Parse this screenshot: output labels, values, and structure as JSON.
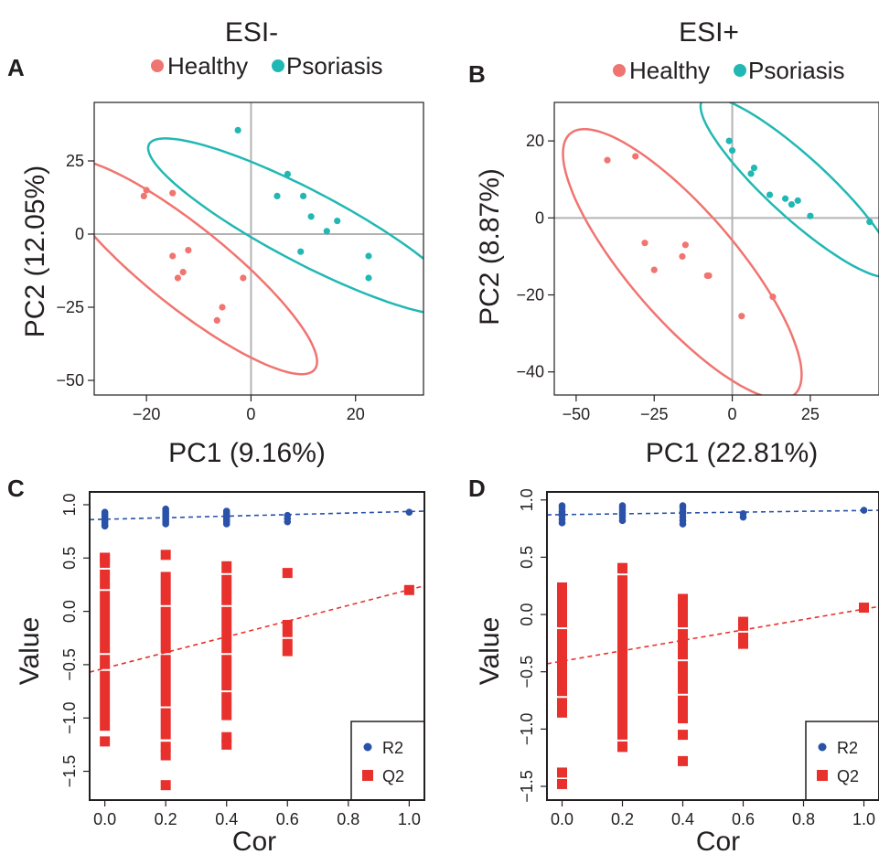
{
  "colors": {
    "healthy": "#f07470",
    "psoriasis": "#21b8b4",
    "r2": "#2a52a8",
    "q2": "#e8302c",
    "axis": "#231f20",
    "grid_zero": "#b3b3b3"
  },
  "legend_top": {
    "healthy": "Healthy",
    "psoriasis": "Psoriasis"
  },
  "legend_box": {
    "r2": "R2",
    "q2": "Q2"
  },
  "chart_data": [
    {
      "id": "A",
      "panel_label": "A",
      "type": "scatter",
      "title": "ESI-",
      "xlabel": "PC1 (9.16%)",
      "ylabel": "PC2 (12.05%)",
      "xlim": [
        -30,
        33
      ],
      "ylim": [
        -55,
        45
      ],
      "xticks": [
        -20,
        0,
        20
      ],
      "yticks": [
        -50,
        -25,
        0,
        25
      ],
      "xtick_labels": [
        "−20",
        "0",
        "20"
      ],
      "ytick_labels": [
        "−50",
        "−25",
        "0",
        "25"
      ],
      "series": [
        {
          "name": "Healthy",
          "points": [
            [
              -20,
              15
            ],
            [
              -20.5,
              13
            ],
            [
              -15,
              14
            ],
            [
              -15,
              -7.5
            ],
            [
              -14,
              -15
            ],
            [
              -13,
              -13
            ],
            [
              -12,
              -5.5
            ],
            [
              -5.5,
              -25
            ],
            [
              -6.5,
              -29.5
            ],
            [
              -1.5,
              -15
            ]
          ],
          "ellipse": {
            "center": [
              -12.5,
              -11
            ],
            "corner": [
              -5,
              -55
            ],
            "semi_major": 43.5,
            "semi_minor": 10,
            "angle_deg": -57
          }
        },
        {
          "name": "Psoriasis",
          "points": [
            [
              -2.5,
              35.5
            ],
            [
              7,
              20.5
            ],
            [
              5,
              13
            ],
            [
              10,
              13
            ],
            [
              11.5,
              6
            ],
            [
              14.5,
              1
            ],
            [
              16.5,
              4.5
            ],
            [
              9.5,
              -6
            ],
            [
              22.5,
              -15
            ],
            [
              22.5,
              -7.5
            ]
          ],
          "ellipse": {
            "center": [
              10.5,
              2.5
            ],
            "semi_major": 41.5,
            "semi_minor": 10,
            "angle_deg": -45
          }
        }
      ]
    },
    {
      "id": "B",
      "panel_label": "B",
      "type": "scatter",
      "title": "ESI+",
      "xlabel": "PC1 (22.81%)",
      "ylabel": "PC2 (8.87%)",
      "xlim": [
        -57,
        47
      ],
      "ylim": [
        -46,
        30
      ],
      "xticks": [
        -50,
        -25,
        0,
        25
      ],
      "yticks": [
        -40,
        -20,
        0,
        20
      ],
      "xtick_labels": [
        "−50",
        "−25",
        "0",
        "25"
      ],
      "ytick_labels": [
        "−40",
        "−20",
        "0",
        "20"
      ],
      "series": [
        {
          "name": "Healthy",
          "points": [
            [
              -40,
              15
            ],
            [
              -31,
              16
            ],
            [
              -28,
              -6.5
            ],
            [
              -25,
              -13.5
            ],
            [
              -15,
              -7
            ],
            [
              -16,
              -10
            ],
            [
              -8,
              -15
            ],
            [
              -7.5,
              -15
            ],
            [
              13,
              -20.5
            ],
            [
              3,
              -25.5
            ]
          ],
          "ellipse": {
            "center": [
              -16,
              -12
            ],
            "semi_major": 49.5,
            "semi_minor": 15.5,
            "angle_deg": -42
          }
        },
        {
          "name": "Psoriasis",
          "points": [
            [
              -1,
              20
            ],
            [
              0,
              17.5
            ],
            [
              7,
              13
            ],
            [
              6,
              11.5
            ],
            [
              12,
              6
            ],
            [
              17,
              5
            ],
            [
              19,
              3.5
            ],
            [
              21,
              4.5
            ],
            [
              25,
              0.5
            ],
            [
              44,
              -1
            ]
          ],
          "ellipse": {
            "center": [
              21,
              8
            ],
            "semi_major": 38,
            "semi_minor": 8.5,
            "angle_deg": -36
          }
        }
      ]
    },
    {
      "id": "C",
      "panel_label": "C",
      "type": "scatter",
      "title": "",
      "xlabel": "Cor",
      "ylabel": "Value",
      "xlim": [
        -0.05,
        1.05
      ],
      "ylim": [
        -1.77,
        1.12
      ],
      "xticks": [
        0,
        0.2,
        0.4,
        0.6,
        0.8,
        1
      ],
      "yticks": [
        -1.5,
        -1,
        -0.5,
        0,
        0.5,
        1
      ],
      "xtick_labels": [
        "0.0",
        "0.2",
        "0.4",
        "0.6",
        "0.8",
        "1.0"
      ],
      "ytick_labels": [
        "−1.5",
        "−1.0",
        "−0.5",
        "0.0",
        "0.5",
        "1.0"
      ],
      "legend": "bottom-right",
      "series": [
        {
          "name": "R2",
          "x": [
            0,
            0,
            0,
            0,
            0,
            0,
            0,
            0,
            0.2,
            0.2,
            0.2,
            0.2,
            0.2,
            0.2,
            0.2,
            0.2,
            0.4,
            0.4,
            0.4,
            0.4,
            0.4,
            0.4,
            0.4,
            0.6,
            0.6,
            0.6,
            1
          ],
          "y": [
            0.93,
            0.91,
            0.89,
            0.87,
            0.85,
            0.83,
            0.81,
            0.8,
            0.96,
            0.94,
            0.92,
            0.9,
            0.88,
            0.86,
            0.84,
            0.82,
            0.94,
            0.92,
            0.9,
            0.88,
            0.86,
            0.84,
            0.82,
            0.9,
            0.87,
            0.84,
            0.93
          ],
          "trend": {
            "from": [
              -0.05,
              0.86
            ],
            "to": [
              1.05,
              0.94
            ]
          }
        },
        {
          "name": "Q2",
          "bars": [
            {
              "x": 0,
              "top": 0.55,
              "bottom": -1.12,
              "gaps": [
                0.4,
                0.2,
                -0.4,
                -0.55
              ]
            },
            {
              "x": 0.2,
              "top": 0.37,
              "bottom": -1.2,
              "gaps": [
                0.05,
                -0.4,
                -0.9
              ]
            },
            {
              "x": 0.4,
              "top": 0.47,
              "bottom": -1.02,
              "gaps": [
                0.35,
                0.05,
                -0.4,
                -0.75
              ]
            },
            {
              "x": 0.6,
              "top": -0.08,
              "bottom": -0.42,
              "gaps": [
                -0.25
              ]
            }
          ],
          "x": [
            0,
            0,
            0.2,
            0.2,
            0.2,
            0.2,
            0.4,
            0.4,
            0.6,
            1
          ],
          "y": [
            0.5,
            -1.22,
            0.53,
            -1.27,
            -1.35,
            -1.63,
            -1.18,
            -1.25,
            0.36,
            0.2
          ],
          "trend": {
            "from": [
              -0.05,
              -0.57
            ],
            "to": [
              1.05,
              0.24
            ]
          }
        }
      ]
    },
    {
      "id": "D",
      "panel_label": "D",
      "type": "scatter",
      "title": "",
      "xlabel": "Cor",
      "ylabel": "Value",
      "xlim": [
        -0.05,
        1.05
      ],
      "ylim": [
        -1.62,
        1.07
      ],
      "xticks": [
        0,
        0.2,
        0.4,
        0.6,
        0.8,
        1
      ],
      "yticks": [
        -1.5,
        -1,
        -0.5,
        0,
        0.5,
        1
      ],
      "xtick_labels": [
        "0.0",
        "0.2",
        "0.4",
        "0.6",
        "0.8",
        "1.0"
      ],
      "ytick_labels": [
        "−1.5",
        "−1.0",
        "−0.5",
        "0.0",
        "0.5",
        "1.0"
      ],
      "legend": "bottom-right",
      "series": [
        {
          "name": "R2",
          "x": [
            0,
            0,
            0,
            0,
            0,
            0,
            0,
            0.2,
            0.2,
            0.2,
            0.2,
            0.2,
            0.2,
            0.2,
            0.4,
            0.4,
            0.4,
            0.4,
            0.4,
            0.4,
            0.4,
            0.6,
            0.6,
            1
          ],
          "y": [
            0.95,
            0.93,
            0.9,
            0.88,
            0.86,
            0.83,
            0.8,
            0.95,
            0.93,
            0.91,
            0.89,
            0.87,
            0.85,
            0.82,
            0.95,
            0.93,
            0.9,
            0.88,
            0.85,
            0.82,
            0.79,
            0.88,
            0.85,
            0.91
          ],
          "trend": {
            "from": [
              -0.05,
              0.87
            ],
            "to": [
              1.05,
              0.91
            ]
          }
        },
        {
          "name": "Q2",
          "bars": [
            {
              "x": 0,
              "top": 0.28,
              "bottom": -0.9,
              "gaps": [
                -0.12,
                -0.72
              ]
            },
            {
              "x": 0.2,
              "top": 0.45,
              "bottom": -1.2,
              "gaps": [
                0.35,
                -1.1
              ]
            },
            {
              "x": 0.4,
              "top": 0.18,
              "bottom": -0.95,
              "gaps": [
                -0.12,
                -0.4,
                -0.7
              ]
            },
            {
              "x": 0.6,
              "top": -0.02,
              "bottom": -0.3,
              "gaps": [
                -0.15
              ]
            }
          ],
          "x": [
            0,
            0,
            0.4,
            0.4,
            1
          ],
          "y": [
            -1.38,
            -1.48,
            -1.05,
            -1.28,
            0.06
          ],
          "trend": {
            "from": [
              -0.05,
              -0.43
            ],
            "to": [
              1.05,
              0.07
            ]
          }
        }
      ]
    }
  ]
}
